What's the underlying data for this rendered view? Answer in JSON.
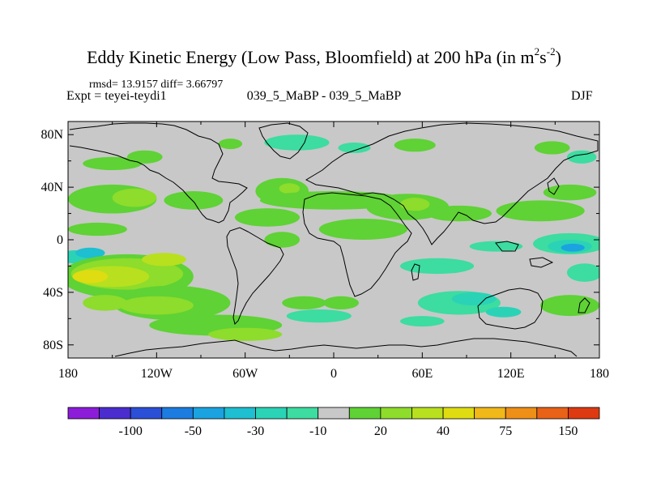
{
  "title": {
    "main": "Eddy Kinetic Energy (Low Pass, Bloomfield) at 200 hPa (in m",
    "sup1": "2",
    "mid": "s",
    "sup2": "-2",
    "end": ")"
  },
  "stats": "rmsd= 13.9157 diff= 3.66797",
  "expt_label": "Expt = teyei-teydi1",
  "experiment_name": "039_5_MaBP - 039_5_MaBP",
  "season": "DJF",
  "lat_ticks": [
    {
      "label": "80N",
      "lat": 80
    },
    {
      "label": "40N",
      "lat": 40
    },
    {
      "label": "0",
      "lat": 0
    },
    {
      "label": "40S",
      "lat": -40
    },
    {
      "label": "80S",
      "lat": -80
    }
  ],
  "lon_ticks": [
    {
      "label": "180",
      "lon": -180
    },
    {
      "label": "120W",
      "lon": -120
    },
    {
      "label": "60W",
      "lon": -60
    },
    {
      "label": "0",
      "lon": 0
    },
    {
      "label": "60E",
      "lon": 60
    },
    {
      "label": "120E",
      "lon": 120
    },
    {
      "label": "180",
      "lon": 180
    }
  ],
  "colorbar": {
    "colors": [
      "#8c1cd8",
      "#4b2ccf",
      "#2b4fd6",
      "#1c7ce0",
      "#1aa3e0",
      "#1dbfd0",
      "#2ad3b6",
      "#3ddca0",
      "#c8c8c8",
      "#5fd235",
      "#8edc2b",
      "#b8e01e",
      "#dfdc12",
      "#f0b818",
      "#ee8f18",
      "#e86218",
      "#dd3a12"
    ],
    "labels": [
      {
        "text": "-100",
        "boundary": 2
      },
      {
        "text": "-50",
        "boundary": 4
      },
      {
        "text": "-30",
        "boundary": 6
      },
      {
        "text": "-10",
        "boundary": 8
      },
      {
        "text": "20",
        "boundary": 10
      },
      {
        "text": "40",
        "boundary": 12
      },
      {
        "text": "75",
        "boundary": 14
      },
      {
        "text": "150",
        "boundary": 16
      }
    ]
  },
  "colors": {
    "background_fill": "#c8c8c8",
    "green_light": "#5fd235",
    "green_yellow": "#8edc2b",
    "yellow_green": "#b8e01e",
    "yellow": "#dfdc12",
    "orange": "#f0b818",
    "teal": "#2ad3b6",
    "cyan": "#1aa3e0",
    "blue": "#1c7ce0",
    "coast": "#000000"
  },
  "fields": [
    {
      "lon": -150,
      "lat": 58,
      "rx": 20,
      "ry": 5,
      "level": 9
    },
    {
      "lon": -128,
      "lat": 63,
      "rx": 12,
      "ry": 5,
      "level": 9
    },
    {
      "lon": -70,
      "lat": 73,
      "rx": 8,
      "ry": 4,
      "level": 9
    },
    {
      "lon": -25,
      "lat": 74,
      "rx": 22,
      "ry": 6,
      "level": 7
    },
    {
      "lon": 14,
      "lat": 70,
      "rx": 11,
      "ry": 4,
      "level": 7
    },
    {
      "lon": 55,
      "lat": 72,
      "rx": 14,
      "ry": 5,
      "level": 9
    },
    {
      "lon": 148,
      "lat": 70,
      "rx": 12,
      "ry": 5,
      "level": 9
    },
    {
      "lon": 168,
      "lat": 63,
      "rx": 10,
      "ry": 5,
      "level": 7
    },
    {
      "lon": -150,
      "lat": 31,
      "rx": 30,
      "ry": 11,
      "level": 9
    },
    {
      "lon": -135,
      "lat": 32,
      "rx": 15,
      "ry": 7,
      "level": 10
    },
    {
      "lon": -95,
      "lat": 30,
      "rx": 20,
      "ry": 7,
      "level": 9
    },
    {
      "lon": -35,
      "lat": 37,
      "rx": 18,
      "ry": 10,
      "level": 9
    },
    {
      "lon": -30,
      "lat": 39,
      "rx": 7,
      "ry": 4,
      "level": 10
    },
    {
      "lon": 0,
      "lat": 30,
      "rx": 50,
      "ry": 7,
      "level": 9
    },
    {
      "lon": 50,
      "lat": 25,
      "rx": 28,
      "ry": 10,
      "level": 9
    },
    {
      "lon": 55,
      "lat": 27,
      "rx": 10,
      "ry": 5,
      "level": 10
    },
    {
      "lon": 85,
      "lat": 20,
      "rx": 22,
      "ry": 6,
      "level": 9
    },
    {
      "lon": 140,
      "lat": 22,
      "rx": 30,
      "ry": 8,
      "level": 9
    },
    {
      "lon": 160,
      "lat": 36,
      "rx": 18,
      "ry": 6,
      "level": 9
    },
    {
      "lon": -45,
      "lat": 17,
      "rx": 22,
      "ry": 7,
      "level": 9
    },
    {
      "lon": -35,
      "lat": 0,
      "rx": 12,
      "ry": 6,
      "level": 9
    },
    {
      "lon": 20,
      "lat": 8,
      "rx": 30,
      "ry": 8,
      "level": 9
    },
    {
      "lon": -160,
      "lat": 8,
      "rx": 20,
      "ry": 5,
      "level": 9
    },
    {
      "lon": -175,
      "lat": -13,
      "rx": 12,
      "ry": 5,
      "level": 6
    },
    {
      "lon": -165,
      "lat": -10,
      "rx": 10,
      "ry": 4,
      "level": 5
    },
    {
      "lon": 160,
      "lat": -3,
      "rx": 25,
      "ry": 8,
      "level": 7
    },
    {
      "lon": 160,
      "lat": -5,
      "rx": 15,
      "ry": 5,
      "level": 6
    },
    {
      "lon": 162,
      "lat": -6,
      "rx": 8,
      "ry": 3,
      "level": 4
    },
    {
      "lon": 110,
      "lat": -5,
      "rx": 18,
      "ry": 4,
      "level": 7
    },
    {
      "lon": 70,
      "lat": -20,
      "rx": 25,
      "ry": 6,
      "level": 7
    },
    {
      "lon": 170,
      "lat": -25,
      "rx": 12,
      "ry": 7,
      "level": 7
    },
    {
      "lon": -140,
      "lat": -28,
      "rx": 45,
      "ry": 17,
      "level": 9
    },
    {
      "lon": -140,
      "lat": -26,
      "rx": 38,
      "ry": 12,
      "level": 10
    },
    {
      "lon": -150,
      "lat": -28,
      "rx": 25,
      "ry": 8,
      "level": 11
    },
    {
      "lon": -115,
      "lat": -15,
      "rx": 15,
      "ry": 5,
      "level": 11
    },
    {
      "lon": -165,
      "lat": -28,
      "rx": 12,
      "ry": 5,
      "level": 12
    },
    {
      "lon": -110,
      "lat": -48,
      "rx": 40,
      "ry": 13,
      "level": 9
    },
    {
      "lon": -120,
      "lat": -50,
      "rx": 25,
      "ry": 7,
      "level": 10
    },
    {
      "lon": -155,
      "lat": -48,
      "rx": 15,
      "ry": 6,
      "level": 10
    },
    {
      "lon": -20,
      "lat": -48,
      "rx": 15,
      "ry": 5,
      "level": 9
    },
    {
      "lon": 5,
      "lat": -48,
      "rx": 12,
      "ry": 5,
      "level": 9
    },
    {
      "lon": -10,
      "lat": -58,
      "rx": 22,
      "ry": 5,
      "level": 7
    },
    {
      "lon": 70,
      "lat": -48,
      "rx": 50,
      "ry": 13,
      "level": 8
    },
    {
      "lon": 85,
      "lat": -48,
      "rx": 28,
      "ry": 9,
      "level": 7
    },
    {
      "lon": 95,
      "lat": -45,
      "rx": 15,
      "ry": 5,
      "level": 6
    },
    {
      "lon": 115,
      "lat": -55,
      "rx": 12,
      "ry": 4,
      "level": 6
    },
    {
      "lon": 160,
      "lat": -50,
      "rx": 20,
      "ry": 8,
      "level": 9
    },
    {
      "lon": 60,
      "lat": -62,
      "rx": 15,
      "ry": 4,
      "level": 7
    },
    {
      "lon": -80,
      "lat": -65,
      "rx": 45,
      "ry": 8,
      "level": 9
    },
    {
      "lon": -60,
      "lat": -72,
      "rx": 25,
      "ry": 5,
      "level": 10
    }
  ]
}
